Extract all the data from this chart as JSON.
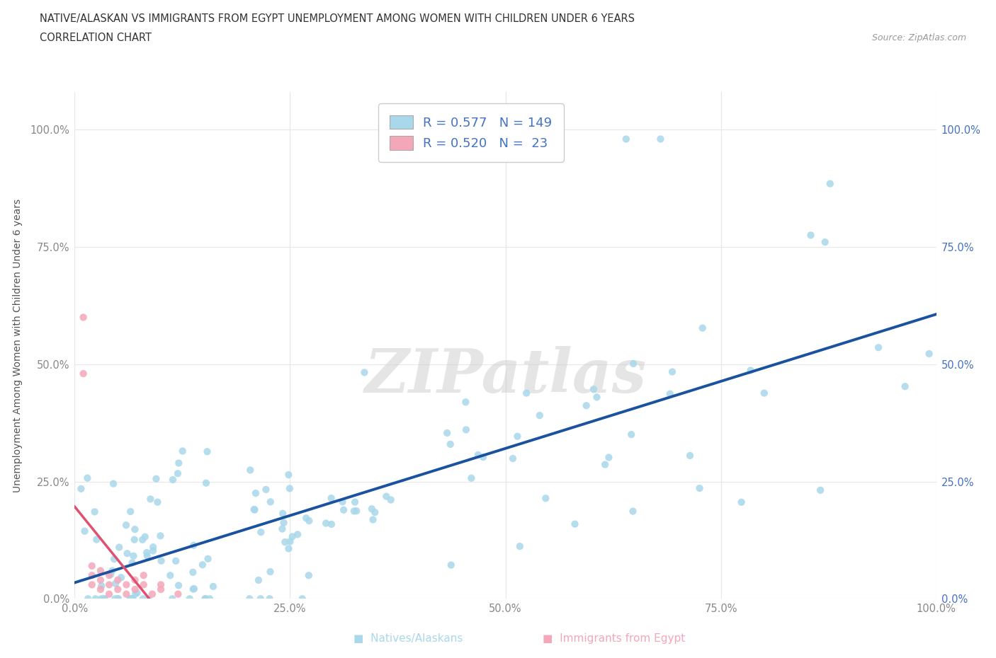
{
  "title_line1": "NATIVE/ALASKAN VS IMMIGRANTS FROM EGYPT UNEMPLOYMENT AMONG WOMEN WITH CHILDREN UNDER 6 YEARS",
  "title_line2": "CORRELATION CHART",
  "source_text": "Source: ZipAtlas.com",
  "ylabel": "Unemployment Among Women with Children Under 6 years",
  "r_native": 0.577,
  "n_native": 149,
  "r_egypt": 0.52,
  "n_egypt": 23,
  "native_color": "#A8D8EA",
  "egypt_color": "#F4A7B9",
  "native_line_color": "#1A52A0",
  "egypt_line_color": "#E05070",
  "egypt_dash_color": "#F0A0B0",
  "watermark": "ZIPatlas",
  "text_blue": "#4472C4",
  "tick_color": "#888888",
  "grid_color": "#E8E8E8",
  "title_color": "#333333",
  "source_color": "#999999"
}
